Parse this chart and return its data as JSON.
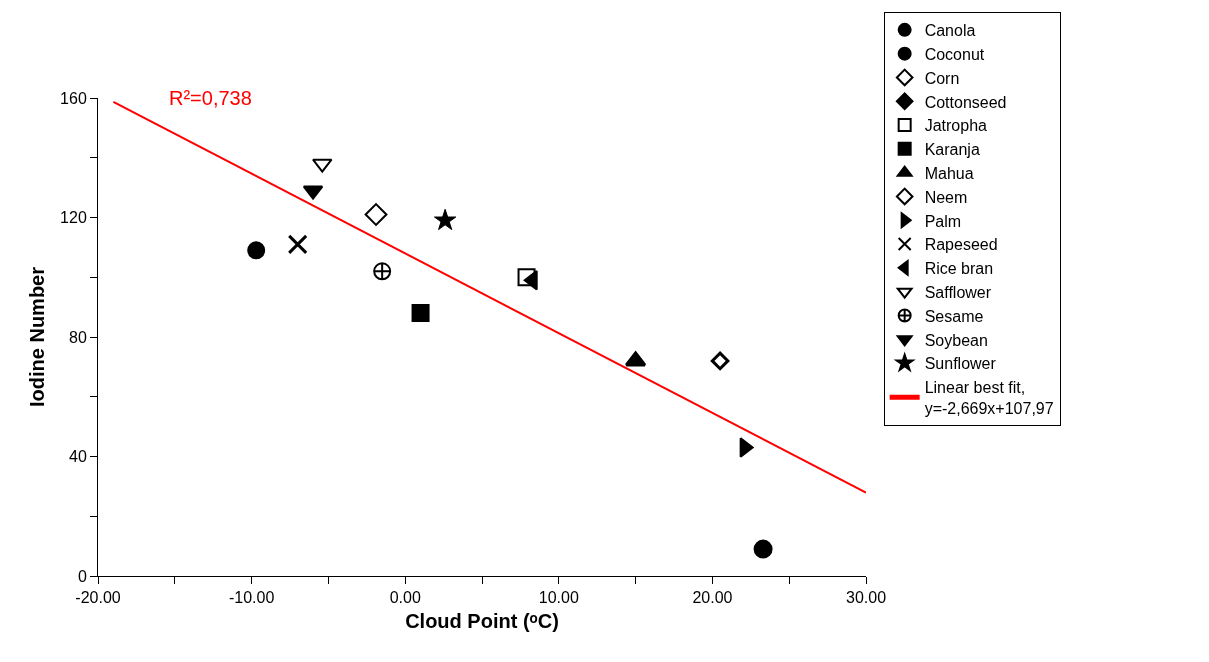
{
  "chart_data": {
    "type": "scatter",
    "xlabel": "Cloud Point (ᵒC)",
    "ylabel": "Iodine Number",
    "annotations": [
      "R²=0,738"
    ],
    "xlim": [
      -20,
      30
    ],
    "xticks": [
      {
        "value": -20,
        "label": "-20.00"
      },
      {
        "value": -15,
        "label": null
      },
      {
        "value": -10,
        "label": "-10.00"
      },
      {
        "value": -5,
        "label": null
      },
      {
        "value": 0,
        "label": "0.00"
      },
      {
        "value": 5,
        "label": null
      },
      {
        "value": 10,
        "label": "10.00"
      },
      {
        "value": 15,
        "label": null
      },
      {
        "value": 20,
        "label": "20.00"
      },
      {
        "value": 25,
        "label": null
      },
      {
        "value": 30,
        "label": "30.00"
      }
    ],
    "ylim": [
      0,
      160
    ],
    "yticks": [
      0,
      {
        "value": 20,
        "label": null
      },
      40,
      {
        "value": 60,
        "label": null
      },
      80,
      {
        "value": 100,
        "label": null
      },
      120,
      {
        "value": 140,
        "label": null
      },
      160
    ],
    "grid": false,
    "legend": "right",
    "series": [
      {
        "name": "Canola",
        "color": "#000000",
        "marker": "circle",
        "x": [
          -9.7
        ],
        "values": [
          109
        ]
      },
      {
        "name": "Coconut",
        "color": "#000000",
        "marker": "circle-half",
        "x": [
          23.3
        ],
        "values": [
          9
        ]
      },
      {
        "name": "Corn",
        "color": "#000000",
        "marker": "diamond-open",
        "x": [
          -1.9
        ],
        "values": [
          121
        ]
      },
      {
        "name": "Cottonseed",
        "color": "#000000",
        "marker": "diamond",
        "x": [
          null
        ],
        "values": [
          null
        ]
      },
      {
        "name": "Jatropha",
        "color": "#000000",
        "marker": "square-open",
        "x": [
          7.9
        ],
        "values": [
          100
        ]
      },
      {
        "name": "Karanja",
        "color": "#000000",
        "marker": "square",
        "x": [
          1.0
        ],
        "values": [
          88
        ]
      },
      {
        "name": "Mahua",
        "color": "#000000",
        "marker": "triangle-half",
        "x": [
          15.0
        ],
        "values": [
          72
        ]
      },
      {
        "name": "Neem",
        "color": "#000000",
        "marker": "diamond-thick",
        "x": [
          20.5
        ],
        "values": [
          72
        ]
      },
      {
        "name": "Palm",
        "color": "#000000",
        "marker": "triangle-right",
        "x": [
          22.1
        ],
        "values": [
          43
        ]
      },
      {
        "name": "Rapeseed",
        "color": "#000000",
        "marker": "x",
        "x": [
          -7.0
        ],
        "values": [
          111
        ]
      },
      {
        "name": "Rice bran",
        "color": "#000000",
        "marker": "triangle-left",
        "x": [
          8.3
        ],
        "values": [
          99
        ]
      },
      {
        "name": "Safflower",
        "color": "#000000",
        "marker": "triangle-down-open",
        "x": [
          -5.4
        ],
        "values": [
          138
        ]
      },
      {
        "name": "Sesame",
        "color": "#000000",
        "marker": "cross",
        "x": [
          -1.5
        ],
        "values": [
          102
        ]
      },
      {
        "name": "Soybean",
        "color": "#000000",
        "marker": "triangle-down",
        "x": [
          -6.0
        ],
        "values": [
          129
        ]
      },
      {
        "name": "Sunflower",
        "color": "#000000",
        "marker": "star",
        "x": [
          2.6
        ],
        "values": [
          119
        ]
      },
      {
        "name": "Linear best fit,\ny=-2,669x+107,97",
        "color": "#ff0000",
        "type": "line",
        "marker": "none",
        "line_style": "solid",
        "x": [
          -19,
          30
        ],
        "values": [
          158.7,
          27.9
        ]
      }
    ]
  }
}
